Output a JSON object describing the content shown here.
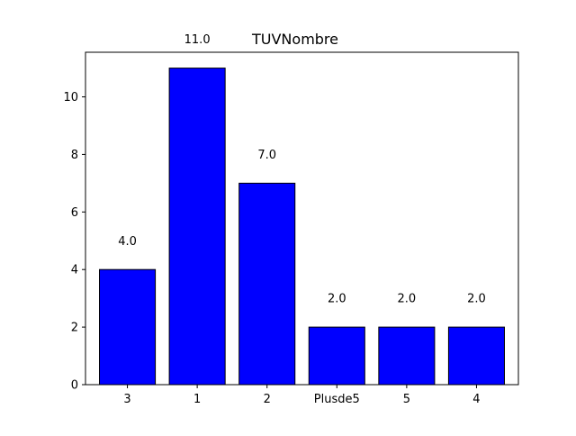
{
  "chart_data": {
    "type": "bar",
    "title": "TUVNombre",
    "xlabel": "",
    "ylabel": "",
    "categories": [
      "3",
      "1",
      "2",
      "Plusde5",
      "5",
      "4"
    ],
    "values": [
      4.0,
      11.0,
      7.0,
      2.0,
      2.0,
      2.0
    ],
    "value_labels": [
      "4.0",
      "11.0",
      "7.0",
      "2.0",
      "2.0",
      "2.0"
    ],
    "ylim": [
      0,
      11.55
    ],
    "yticks": [
      0,
      2,
      4,
      6,
      8,
      10
    ],
    "grid": false,
    "bar_color": "#0000ff",
    "bar_edge_color": "#000000"
  }
}
